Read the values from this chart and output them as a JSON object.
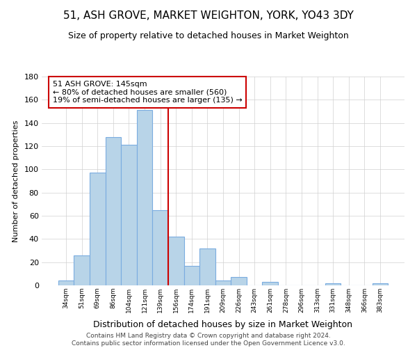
{
  "title": "51, ASH GROVE, MARKET WEIGHTON, YORK, YO43 3DY",
  "subtitle": "Size of property relative to detached houses in Market Weighton",
  "xlabel": "Distribution of detached houses by size in Market Weighton",
  "ylabel": "Number of detached properties",
  "categories": [
    "34sqm",
    "51sqm",
    "69sqm",
    "86sqm",
    "104sqm",
    "121sqm",
    "139sqm",
    "156sqm",
    "174sqm",
    "191sqm",
    "209sqm",
    "226sqm",
    "243sqm",
    "261sqm",
    "278sqm",
    "296sqm",
    "313sqm",
    "331sqm",
    "348sqm",
    "366sqm",
    "383sqm"
  ],
  "values": [
    4,
    26,
    97,
    128,
    121,
    151,
    65,
    42,
    17,
    32,
    4,
    7,
    0,
    3,
    0,
    0,
    0,
    2,
    0,
    0,
    2
  ],
  "bar_color": "#b8d4e8",
  "bar_edge_color": "#7aace0",
  "ylim": [
    0,
    180
  ],
  "yticks": [
    0,
    20,
    40,
    60,
    80,
    100,
    120,
    140,
    160,
    180
  ],
  "annotation_title": "51 ASH GROVE: 145sqm",
  "annotation_line1": "← 80% of detached houses are smaller (560)",
  "annotation_line2": "19% of semi-detached houses are larger (135) →",
  "annotation_box_color": "#ffffff",
  "annotation_box_edge": "#cc0000",
  "vline_x_index": 6.5,
  "vline_color": "#cc0000",
  "footer_line1": "Contains HM Land Registry data © Crown copyright and database right 2024.",
  "footer_line2": "Contains public sector information licensed under the Open Government Licence v3.0.",
  "background_color": "#ffffff",
  "grid_color": "#d0d0d0"
}
